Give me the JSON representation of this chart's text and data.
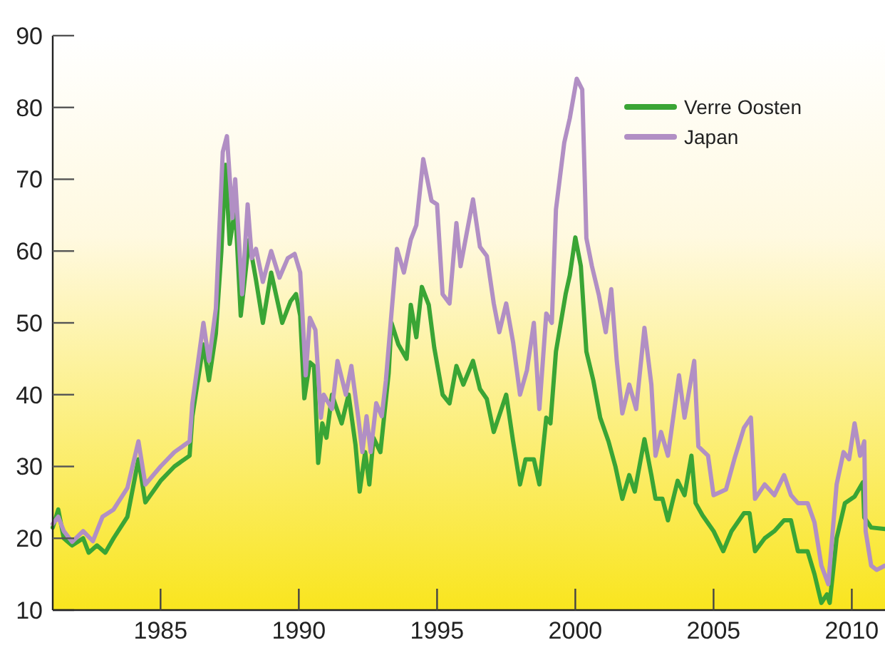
{
  "chart_data": {
    "type": "line",
    "xlim": [
      1981.1,
      2011.2
    ],
    "xticks": [
      1985,
      1990,
      1995,
      2000,
      2005,
      2010
    ],
    "ylim": [
      10,
      90
    ],
    "yticks": [
      10,
      20,
      30,
      40,
      50,
      60,
      70,
      80,
      90
    ],
    "grid": false,
    "legend": "top right",
    "marker": "none",
    "line_style": "solid",
    "series": [
      {
        "name": "Verre Oosten",
        "color": "#3aa535",
        "x": [
          1981.1,
          1981.3,
          1981.5,
          1981.8,
          1982.2,
          1982.4,
          1982.7,
          1983.0,
          1983.3,
          1983.8,
          1984.2,
          1984.45,
          1985.0,
          1985.5,
          1986.05,
          1986.15,
          1986.55,
          1986.75,
          1987.0,
          1987.2,
          1987.35,
          1987.5,
          1987.7,
          1987.9,
          1988.2,
          1988.45,
          1988.7,
          1989.0,
          1989.4,
          1989.7,
          1989.9,
          1990.05,
          1990.2,
          1990.4,
          1990.55,
          1990.7,
          1990.85,
          1991.0,
          1991.2,
          1991.55,
          1991.8,
          1992.05,
          1992.2,
          1992.4,
          1992.55,
          1992.7,
          1992.95,
          1993.25,
          1993.35,
          1993.6,
          1993.9,
          1994.05,
          1994.25,
          1994.45,
          1994.7,
          1994.9,
          1995.2,
          1995.45,
          1995.7,
          1995.95,
          1996.3,
          1996.55,
          1996.8,
          1997.05,
          1997.5,
          1997.75,
          1998.0,
          1998.2,
          1998.5,
          1998.7,
          1998.95,
          1999.1,
          1999.3,
          1999.65,
          1999.8,
          2000.0,
          2000.2,
          2000.4,
          2000.65,
          2000.9,
          2001.2,
          2001.45,
          2001.7,
          2001.95,
          2002.15,
          2002.5,
          2002.75,
          2002.9,
          2003.15,
          2003.35,
          2003.7,
          2003.95,
          2004.2,
          2004.35,
          2004.6,
          2005.0,
          2005.35,
          2005.65,
          2006.1,
          2006.3,
          2006.5,
          2006.85,
          2007.2,
          2007.55,
          2007.8,
          2008.05,
          2008.4,
          2008.65,
          2008.9,
          2009.1,
          2009.2,
          2009.45,
          2009.75,
          2010.1,
          2010.4,
          2010.45,
          2010.7,
          2011.2
        ],
        "values": [
          21.5,
          24,
          20,
          19,
          20,
          18,
          19,
          18,
          20,
          23,
          31,
          25,
          28,
          30,
          31.5,
          37,
          47,
          42,
          48.5,
          60,
          72,
          61,
          66,
          51,
          61.5,
          56,
          50,
          57,
          50,
          53,
          54,
          51,
          39.5,
          44.5,
          44,
          30.5,
          36,
          34,
          40,
          36,
          40,
          33,
          26.5,
          32,
          27.5,
          34,
          32,
          43,
          50,
          47,
          45,
          52.5,
          48,
          55,
          52.5,
          46.5,
          40,
          38.8,
          44,
          41.4,
          44.7,
          40.8,
          39.4,
          34.8,
          40,
          33.5,
          27.5,
          31,
          31,
          27.5,
          36.8,
          36,
          46,
          54,
          56.6,
          61.9,
          57.9,
          46,
          42,
          36.8,
          33.5,
          30,
          25.5,
          28.8,
          26.5,
          33.8,
          28.8,
          25.5,
          25.5,
          22.5,
          28,
          26,
          31.5,
          24.9,
          23.2,
          21,
          18.2,
          21,
          23.5,
          23.5,
          18.2,
          20,
          21,
          22.5,
          22.5,
          18.2,
          18.2,
          15,
          11,
          12.2,
          11,
          20,
          24.9,
          25.8,
          27.8,
          22.9,
          21.5,
          21.3
        ]
      },
      {
        "name": "Japan",
        "color": "#b18fc4",
        "x": [
          1981.1,
          1981.3,
          1981.5,
          1981.8,
          1982.2,
          1982.55,
          1982.9,
          1983.3,
          1983.8,
          1984.2,
          1984.45,
          1985.0,
          1985.5,
          1986.05,
          1986.15,
          1986.55,
          1986.75,
          1987.0,
          1987.25,
          1987.4,
          1987.6,
          1987.7,
          1987.95,
          1988.15,
          1988.3,
          1988.45,
          1988.7,
          1989.0,
          1989.3,
          1989.6,
          1989.85,
          1990.05,
          1990.25,
          1990.4,
          1990.6,
          1990.8,
          1990.9,
          1991.2,
          1991.4,
          1991.7,
          1991.9,
          1992.15,
          1992.3,
          1992.45,
          1992.6,
          1992.8,
          1993.0,
          1993.15,
          1993.35,
          1993.55,
          1993.8,
          1994.05,
          1994.25,
          1994.5,
          1994.8,
          1995.0,
          1995.2,
          1995.45,
          1995.7,
          1995.85,
          1996.3,
          1996.55,
          1996.8,
          1997.05,
          1997.25,
          1997.5,
          1997.75,
          1998.0,
          1998.25,
          1998.5,
          1998.7,
          1998.95,
          1999.15,
          1999.3,
          1999.6,
          1999.8,
          2000.05,
          2000.25,
          2000.4,
          2000.6,
          2000.85,
          2001.1,
          2001.3,
          2001.5,
          2001.7,
          2001.95,
          2002.2,
          2002.5,
          2002.75,
          2002.9,
          2003.1,
          2003.35,
          2003.75,
          2003.95,
          2004.3,
          2004.45,
          2004.8,
          2005.0,
          2005.45,
          2005.75,
          2006.1,
          2006.35,
          2006.5,
          2006.85,
          2007.2,
          2007.55,
          2007.8,
          2008.05,
          2008.4,
          2008.65,
          2008.9,
          2009.15,
          2009.45,
          2009.7,
          2009.9,
          2010.1,
          2010.3,
          2010.45,
          2010.5,
          2010.7,
          2010.9,
          2011.2
        ],
        "values": [
          22,
          23,
          21,
          19.5,
          21,
          19.6,
          23,
          24,
          27,
          33.5,
          27.5,
          30,
          32,
          33.5,
          38.8,
          50,
          44.7,
          52,
          73.8,
          76,
          64.6,
          70,
          54,
          66.5,
          59,
          60.3,
          55.7,
          60,
          56.3,
          59,
          59.6,
          57,
          42.7,
          50.7,
          49,
          36.8,
          40,
          38,
          44.7,
          40,
          44,
          36.8,
          32,
          37,
          32,
          38.8,
          37,
          42,
          51.3,
          60.3,
          57,
          61.6,
          63.6,
          72.8,
          67,
          66.5,
          54,
          52.7,
          63.9,
          57.9,
          67.2,
          60.6,
          59.3,
          52.7,
          48.7,
          52.7,
          47.3,
          40,
          43.4,
          50,
          38,
          51.3,
          50,
          65.8,
          75.1,
          78.5,
          84,
          82.5,
          61.8,
          57.9,
          53.9,
          48.7,
          54.7,
          44.7,
          37.4,
          41.4,
          38,
          49.3,
          41.4,
          31.5,
          34.8,
          31.5,
          42.7,
          36.8,
          44.7,
          32.8,
          31.5,
          26,
          26.8,
          31,
          35.4,
          36.8,
          25.5,
          27.5,
          26,
          28.8,
          26,
          24.9,
          24.9,
          22.2,
          16.2,
          13.6,
          27.5,
          32,
          31,
          36,
          31.5,
          33.5,
          21,
          16.2,
          15.6,
          16.2
        ]
      }
    ]
  }
}
